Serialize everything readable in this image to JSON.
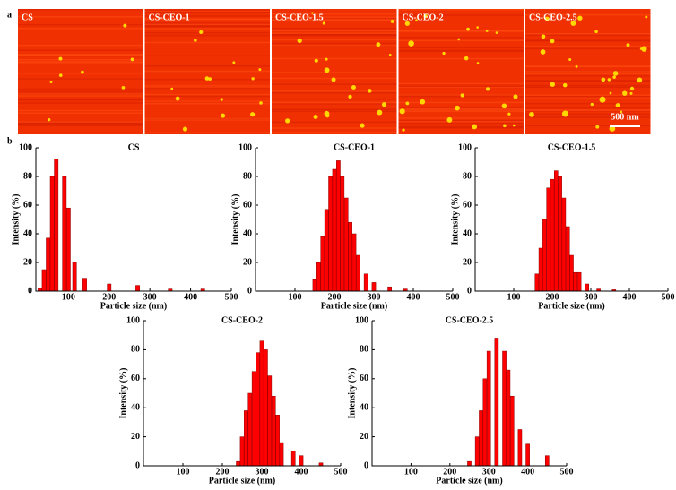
{
  "panel_labels": [
    "a",
    "b"
  ],
  "images": [
    {
      "label": "CS"
    },
    {
      "label": "CS-CEO-1"
    },
    {
      "label": "CS-CEO-1.5"
    },
    {
      "label": "CS-CEO-2"
    },
    {
      "label": "CS-CEO-2.5"
    }
  ],
  "scale_bar": "500 nm",
  "chart_data": [
    {
      "type": "bar",
      "title": "CS",
      "x_label": "Particle size (nm)",
      "y_label": "Intensity (%)",
      "color": "#ff0000",
      "x": [
        30,
        40,
        50,
        60,
        70,
        90,
        100,
        115,
        140,
        200,
        270,
        350,
        430
      ],
      "values": [
        2,
        15,
        37,
        80,
        92,
        80,
        58,
        20,
        9,
        5,
        4,
        1.5,
        1.5
      ],
      "xlim": [
        20,
        500
      ],
      "xticks": [
        100,
        200,
        300,
        400,
        500
      ],
      "ylim": [
        0,
        100
      ],
      "yticks": [
        0,
        20,
        40,
        60,
        80,
        100
      ]
    },
    {
      "type": "bar",
      "title": "CS-CEO-1",
      "x_label": "Particle size (nm)",
      "y_label": "Intensity (%)",
      "color": "#ff0000",
      "x": [
        150,
        160,
        170,
        180,
        190,
        200,
        210,
        220,
        230,
        240,
        250,
        260,
        280,
        300,
        340,
        380
      ],
      "values": [
        8,
        20,
        38,
        57,
        80,
        85,
        91,
        80,
        65,
        48,
        40,
        25,
        12,
        6,
        3,
        1.5
      ],
      "xlim": [
        0,
        500
      ],
      "xticks": [
        100,
        200,
        300,
        400,
        500
      ],
      "ylim": [
        0,
        100
      ],
      "yticks": [
        0,
        20,
        40,
        60,
        80,
        100
      ]
    },
    {
      "type": "bar",
      "title": "CS-CEO-1.5",
      "x_label": "Particle size (nm)",
      "y_label": "Intensity (%)",
      "color": "#ff0000",
      "x": [
        160,
        170,
        180,
        190,
        200,
        210,
        220,
        230,
        240,
        250,
        260,
        270,
        290,
        320,
        360
      ],
      "values": [
        12,
        30,
        50,
        72,
        78,
        84,
        80,
        65,
        45,
        25,
        13,
        13,
        5,
        1.5,
        1
      ],
      "xlim": [
        0,
        500
      ],
      "xticks": [
        100,
        200,
        300,
        400,
        500
      ],
      "ylim": [
        0,
        100
      ],
      "yticks": [
        0,
        20,
        40,
        60,
        80,
        100
      ]
    },
    {
      "type": "bar",
      "title": "CS-CEO-2",
      "x_label": "Particle size (nm)",
      "y_label": "Intensity (%)",
      "color": "#ff0000",
      "x": [
        240,
        250,
        260,
        270,
        280,
        290,
        300,
        310,
        320,
        330,
        340,
        350,
        380,
        400,
        450
      ],
      "values": [
        3,
        20,
        38,
        50,
        65,
        78,
        86,
        80,
        62,
        48,
        35,
        16,
        10,
        7,
        2
      ],
      "xlim": [
        0,
        500
      ],
      "xticks": [
        100,
        200,
        300,
        400,
        500
      ],
      "ylim": [
        0,
        100
      ],
      "yticks": [
        0,
        20,
        40,
        60,
        80,
        100
      ]
    },
    {
      "type": "bar",
      "title": "CS-CEO-2.5",
      "x_label": "Particle size (nm)",
      "y_label": "Intensity (%)",
      "color": "#ff0000",
      "x": [
        250,
        270,
        280,
        290,
        300,
        320,
        340,
        350,
        360,
        380,
        400,
        450
      ],
      "values": [
        3,
        20,
        38,
        60,
        79,
        88,
        79,
        66,
        48,
        25,
        15,
        7
      ],
      "xlim": [
        0,
        500
      ],
      "xticks": [
        100,
        200,
        300,
        400,
        500
      ],
      "ylim": [
        0,
        100
      ],
      "yticks": [
        0,
        20,
        40,
        60,
        80,
        100
      ]
    }
  ]
}
